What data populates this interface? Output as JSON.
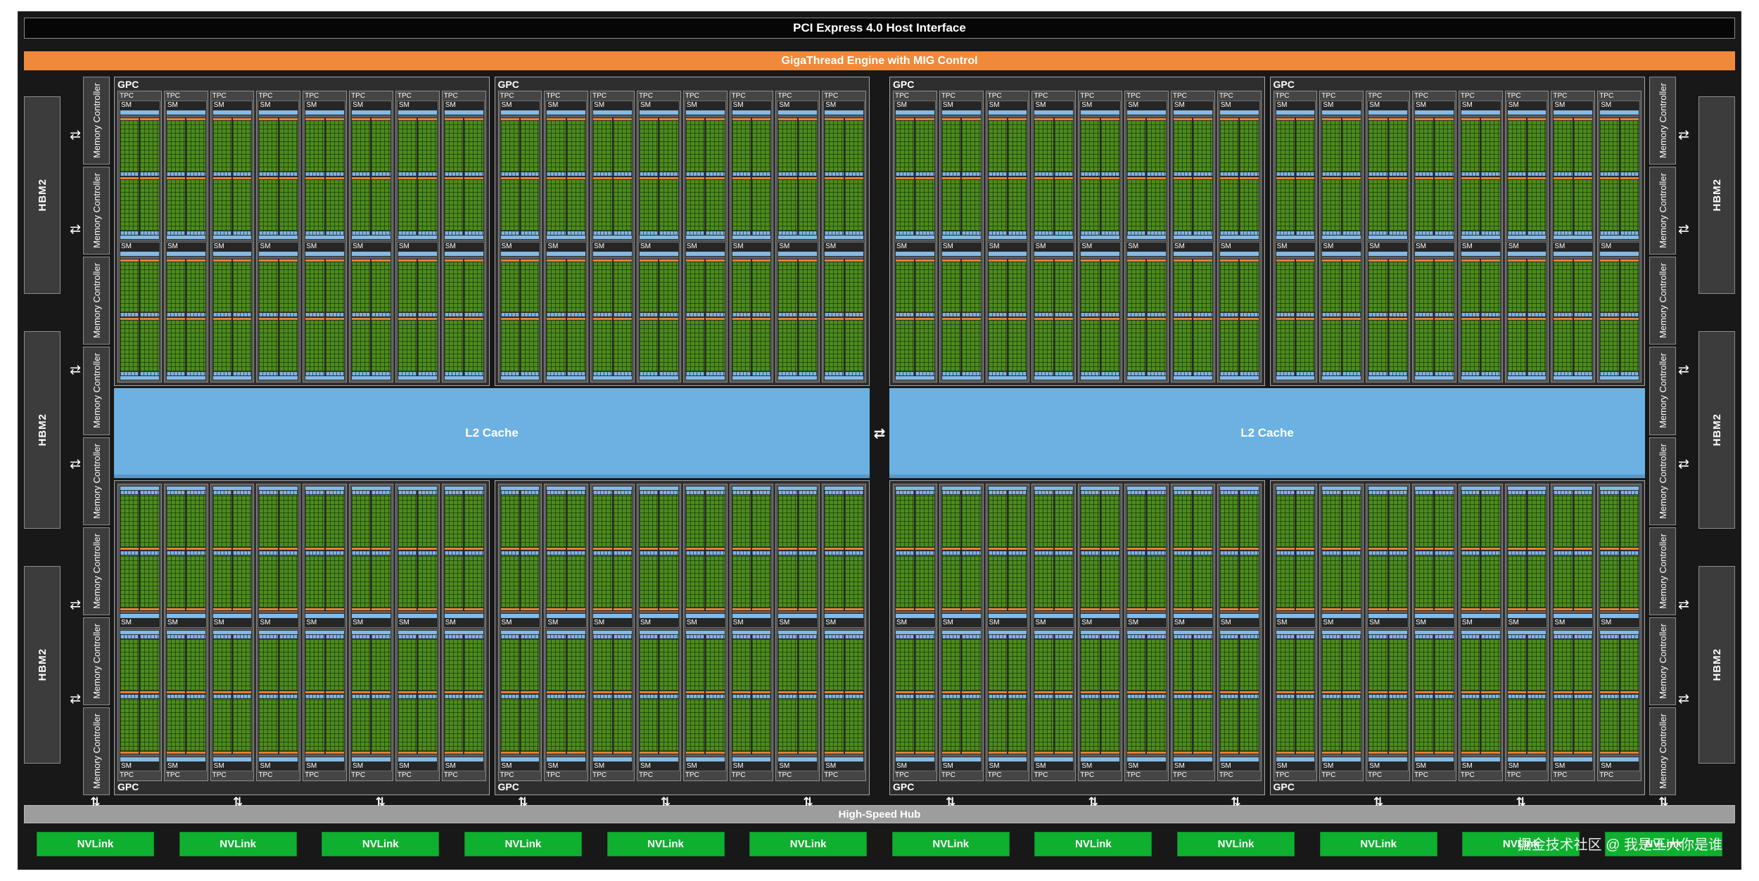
{
  "colors": {
    "background": "#181818",
    "pci_bar": "#060606",
    "giga_bar": "#ef8a3c",
    "block_gray": "#3c3c3c",
    "l2_blue": "#6cb1e1",
    "core_green": "#4c8b1d",
    "strip_blue": "#84bae5",
    "strip_orange": "#e2813a",
    "hub_gray": "#9d9d9d",
    "nvlink_green": "#0fb02f"
  },
  "top_bars": {
    "pci_label": "PCI Express 4.0 Host Interface",
    "giga_label": "GigaThread Engine with MIG Control"
  },
  "memory": {
    "left_hbm": [
      "HBM2",
      "HBM2",
      "HBM2"
    ],
    "right_hbm": [
      "HBM2",
      "HBM2",
      "HBM2"
    ],
    "mc_label": "Memory Controller",
    "left_mc_count": 8,
    "right_mc_count": 8
  },
  "gpu": {
    "gpc_label": "GPC",
    "tpc_label": "TPC",
    "sm_label": "SM",
    "gpc_count": 8,
    "tpcs_per_gpc": 8,
    "sms_per_tpc": 2
  },
  "l2": {
    "blocks": [
      "L2 Cache",
      "L2 Cache"
    ]
  },
  "hub": {
    "label": "High-Speed Hub"
  },
  "nvlink": {
    "labels": [
      "NVLink",
      "NVLink",
      "NVLink",
      "NVLink",
      "NVLink",
      "NVLink",
      "NVLink",
      "NVLink",
      "NVLink",
      "NVLink",
      "NVLink",
      "NVLink"
    ]
  },
  "icons": {
    "h_arrow": "⇄",
    "v_arrow": "⇅"
  },
  "watermark": "掘金技术社区 @ 我是王大你是谁"
}
